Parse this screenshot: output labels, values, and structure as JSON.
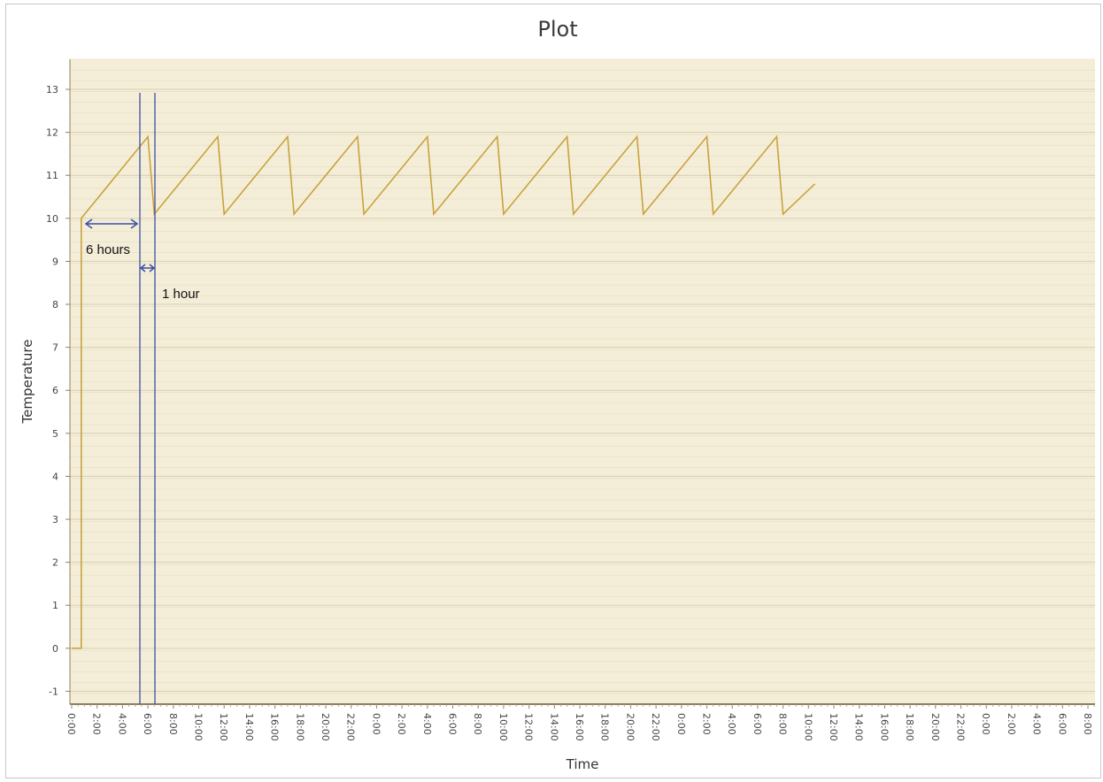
{
  "chart_data": {
    "type": "line",
    "title": "Plot",
    "xlabel": "Time",
    "ylabel": "Temperature",
    "ylim": [
      -1.3,
      13.7
    ],
    "yticks": [
      -1,
      0,
      1,
      2,
      3,
      4,
      5,
      6,
      7,
      8,
      9,
      10,
      11,
      12,
      13
    ],
    "x_tick_labels": [
      "0:00",
      "2:00",
      "4:00",
      "6:00",
      "8:00",
      "10:00",
      "12:00",
      "14:00",
      "16:00",
      "18:00",
      "20:00",
      "22:00",
      "0:00",
      "2:00",
      "4:00",
      "6:00",
      "8:00",
      "10:00",
      "12:00",
      "14:00",
      "16:00",
      "18:00",
      "20:00",
      "22:00",
      "0:00",
      "2:00",
      "4:00",
      "6:00",
      "8:00",
      "10:00",
      "12:00",
      "14:00",
      "16:00",
      "18:00",
      "20:00",
      "22:00",
      "0:00",
      "2:00",
      "4:00",
      "6:00",
      "8:00"
    ],
    "grid": true,
    "series": [
      {
        "color": "#c9a23c",
        "points": [
          {
            "x": "0:00",
            "y": 0
          },
          {
            "x": "0:45",
            "y": 0
          },
          {
            "x": "0:45",
            "y": 10
          },
          {
            "x": "6:00",
            "y": 11.9
          },
          {
            "x": "6:30",
            "y": 10.1
          },
          {
            "x": "11:30",
            "y": 11.9
          },
          {
            "x": "12:00",
            "y": 10.1
          },
          {
            "x": "17:00",
            "y": 11.9
          },
          {
            "x": "17:30",
            "y": 10.1
          },
          {
            "x": "22:30",
            "y": 11.9
          },
          {
            "x": "23:00",
            "y": 10.1
          },
          {
            "x": "4:00",
            "y": 11.9
          },
          {
            "x": "4:30",
            "y": 10.1
          },
          {
            "x": "9:30",
            "y": 11.9
          },
          {
            "x": "10:00",
            "y": 10.1
          },
          {
            "x": "15:00",
            "y": 11.9
          },
          {
            "x": "15:30",
            "y": 10.1
          },
          {
            "x": "20:30",
            "y": 11.9
          },
          {
            "x": "21:00",
            "y": 10.1
          },
          {
            "x": "2:00",
            "y": 11.9
          },
          {
            "x": "2:30",
            "y": 10.1
          },
          {
            "x": "7:30",
            "y": 11.9
          },
          {
            "x": "8:00",
            "y": 10.1
          },
          {
            "x": "10:30",
            "y": 10.8
          }
        ]
      }
    ],
    "annotations": [
      {
        "text": "6 hours"
      },
      {
        "text": "1 hour"
      }
    ],
    "colors": {
      "plot_bg": "#f4eed8",
      "grid": "#e3dcc3",
      "line": "#c9a23c",
      "annotation": "#3b4fa3",
      "axis": "#8a8060"
    }
  }
}
